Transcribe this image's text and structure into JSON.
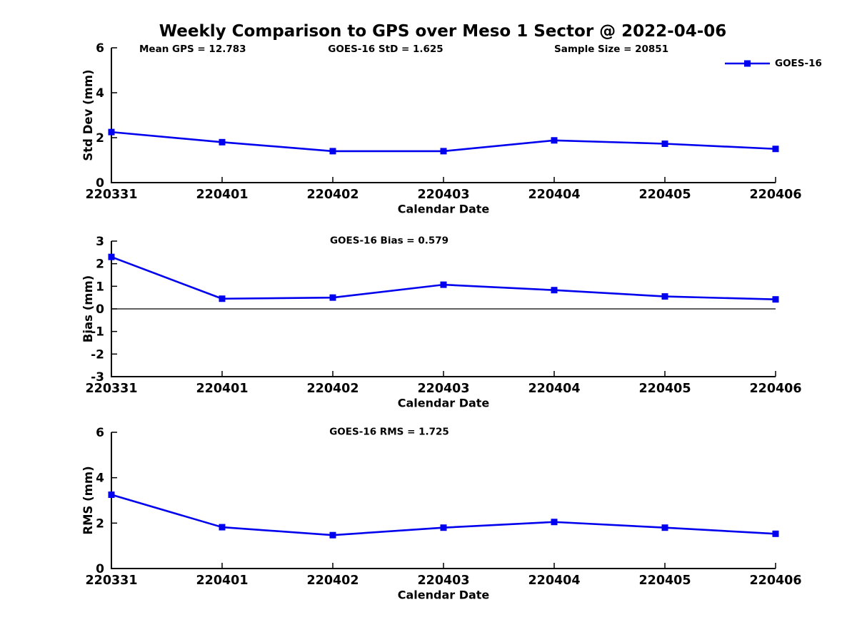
{
  "title": "Weekly Comparison to GPS over Meso 1 Sector @ 2022-04-06",
  "annotations": {
    "mean_gps": "Mean GPS = 12.783",
    "goes16_std": "GOES-16 StD = 1.625",
    "sample_size": "Sample Size = 20851"
  },
  "legend": {
    "label": "GOES-16",
    "position": "top-right"
  },
  "colors": {
    "series": "#0000ee",
    "axis": "#000000",
    "text": "#000000",
    "background": "#ffffff"
  },
  "chart_data": [
    {
      "type": "line",
      "title": "",
      "xlabel": "Calendar Date",
      "ylabel": "Std Dev (mm)",
      "categories": [
        "220331",
        "220401",
        "220402",
        "220403",
        "220404",
        "220405",
        "220406"
      ],
      "ylim": [
        0,
        6
      ],
      "yticks": [
        0,
        2,
        4,
        6
      ],
      "grid": false,
      "zero_line": false,
      "series": [
        {
          "name": "GOES-16",
          "values": [
            2.25,
            1.8,
            1.4,
            1.4,
            1.88,
            1.73,
            1.5
          ]
        }
      ]
    },
    {
      "type": "line",
      "title": "GOES-16 Bias  = 0.579",
      "xlabel": "Calendar Date",
      "ylabel": "Bias (mm)",
      "categories": [
        "220331",
        "220401",
        "220402",
        "220403",
        "220404",
        "220405",
        "220406"
      ],
      "ylim": [
        -3,
        3
      ],
      "yticks": [
        -3,
        -2,
        -1,
        0,
        1,
        2,
        3
      ],
      "grid": false,
      "zero_line": true,
      "series": [
        {
          "name": "GOES-16",
          "values": [
            2.3,
            0.45,
            0.5,
            1.07,
            0.83,
            0.55,
            0.42
          ]
        }
      ]
    },
    {
      "type": "line",
      "title": "GOES-16 RMS = 1.725",
      "xlabel": "Calendar Date",
      "ylabel": "RMS (mm)",
      "categories": [
        "220331",
        "220401",
        "220402",
        "220403",
        "220404",
        "220405",
        "220406"
      ],
      "ylim": [
        0,
        6
      ],
      "yticks": [
        0,
        2,
        4,
        6
      ],
      "grid": false,
      "zero_line": false,
      "series": [
        {
          "name": "GOES-16",
          "values": [
            3.25,
            1.82,
            1.47,
            1.8,
            2.05,
            1.8,
            1.53
          ]
        }
      ]
    }
  ]
}
